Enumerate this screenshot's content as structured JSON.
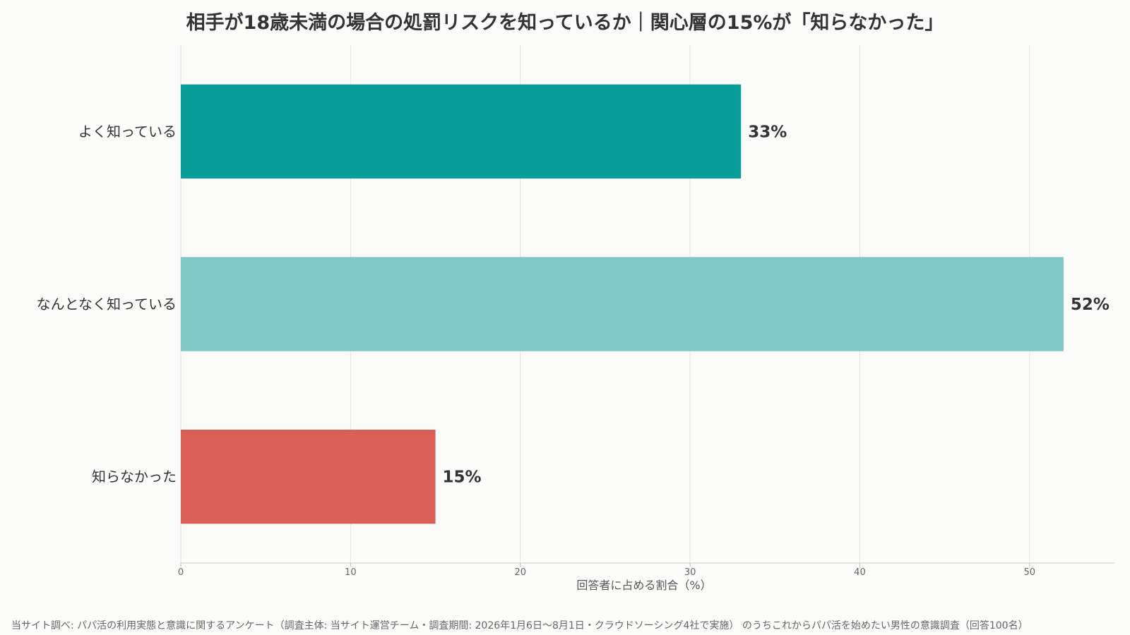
{
  "chart_data": {
    "type": "bar",
    "orientation": "horizontal",
    "title": "相手が18歳未満の場合の処罰リスクを知っているか｜関心層の15%が「知らなかった」",
    "categories": [
      "よく知っている",
      "なんとなく知っている",
      "知らなかった"
    ],
    "values": [
      33,
      52,
      15
    ],
    "value_labels": [
      "33%",
      "52%",
      "15%"
    ],
    "bar_colors": [
      "#0a9e9a",
      "#80c8c5",
      "#d95f57"
    ],
    "xlabel": "回答者に占める割合（%）",
    "ylabel": "",
    "xlim": [
      0,
      55
    ],
    "xticks": [
      0,
      10,
      20,
      30,
      40,
      50
    ],
    "grid": "vertical",
    "legend": "none"
  },
  "source_note": "当サイト調べ: パパ活の利用実態と意識に関するアンケート（調査主体: 当サイト運営チーム・調査期間: 2026年1月6日〜8月1日・クラウドソーシング4社で実施） のうちこれからパパ活を始めたい男性の意識調査（回答100名）"
}
